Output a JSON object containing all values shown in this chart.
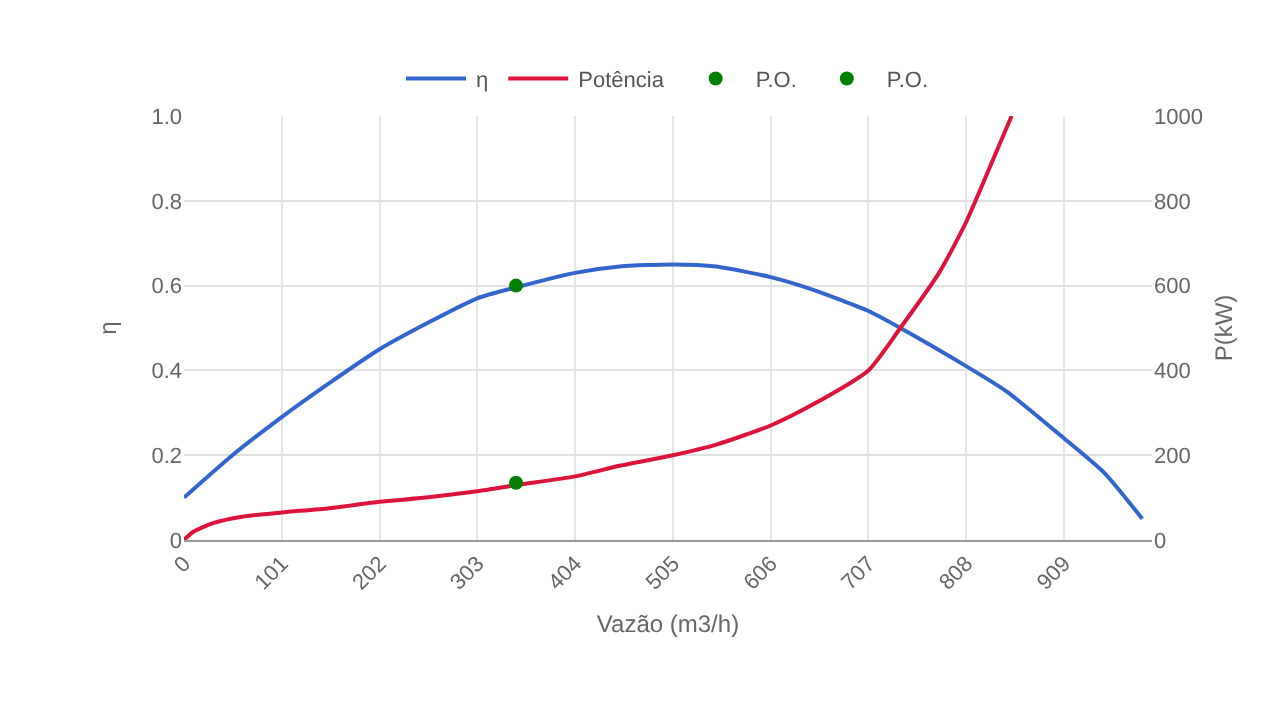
{
  "chart_data": {
    "type": "line",
    "xlabel": "Vazão (m3/h)",
    "ylabel": "η",
    "y2label": "P(kW)",
    "xlim": [
      0,
      1000
    ],
    "xticks": [
      0,
      101,
      202,
      303,
      404,
      505,
      606,
      707,
      808,
      909
    ],
    "ylim": [
      0,
      1
    ],
    "yticks": [
      {
        "value": 0,
        "label": "0"
      },
      0.2,
      0.4,
      0.6,
      0.8,
      {
        "value": 1,
        "label": "1.0"
      }
    ],
    "y2lim": [
      0,
      1000
    ],
    "y2ticks": [
      0,
      200,
      400,
      600,
      800,
      1000
    ],
    "grid": true,
    "legend": "top",
    "marker": "none",
    "series": [
      {
        "name": "η",
        "color": "#3366cc",
        "x": [
          0,
          50,
          101,
          150,
          202,
          250,
          303,
          350,
          404,
          450,
          505,
          550,
          606,
          650,
          707,
          740,
          808,
          850,
          909,
          950,
          990
        ],
        "values": [
          0.1,
          0.2,
          0.29,
          0.37,
          0.45,
          0.51,
          0.57,
          0.6,
          0.63,
          0.645,
          0.65,
          0.645,
          0.62,
          0.59,
          0.54,
          0.5,
          0.41,
          0.35,
          0.24,
          0.16,
          0.05
        ]
      },
      {
        "name": "Potência",
        "color": "#dc143c",
        "axis": "y2",
        "x": [
          0,
          10,
          30,
          60,
          101,
          150,
          202,
          250,
          303,
          345,
          404,
          450,
          505,
          550,
          606,
          650,
          707,
          740,
          780,
          808,
          840,
          855
        ],
        "values": [
          0,
          20,
          40,
          55,
          65,
          75,
          90,
          100,
          115,
          130,
          150,
          175,
          200,
          225,
          270,
          320,
          400,
          500,
          630,
          750,
          920,
          1000
        ]
      },
      {
        "name": "P.O.",
        "color": "#008000",
        "type": "scatter",
        "marker": "circle",
        "x": [
          343
        ],
        "values": [
          0.6
        ]
      },
      {
        "name": "P.O.",
        "color": "#008000",
        "type": "scatter",
        "marker": "circle",
        "axis": "y2",
        "x": [
          343
        ],
        "values": [
          135
        ]
      }
    ]
  }
}
